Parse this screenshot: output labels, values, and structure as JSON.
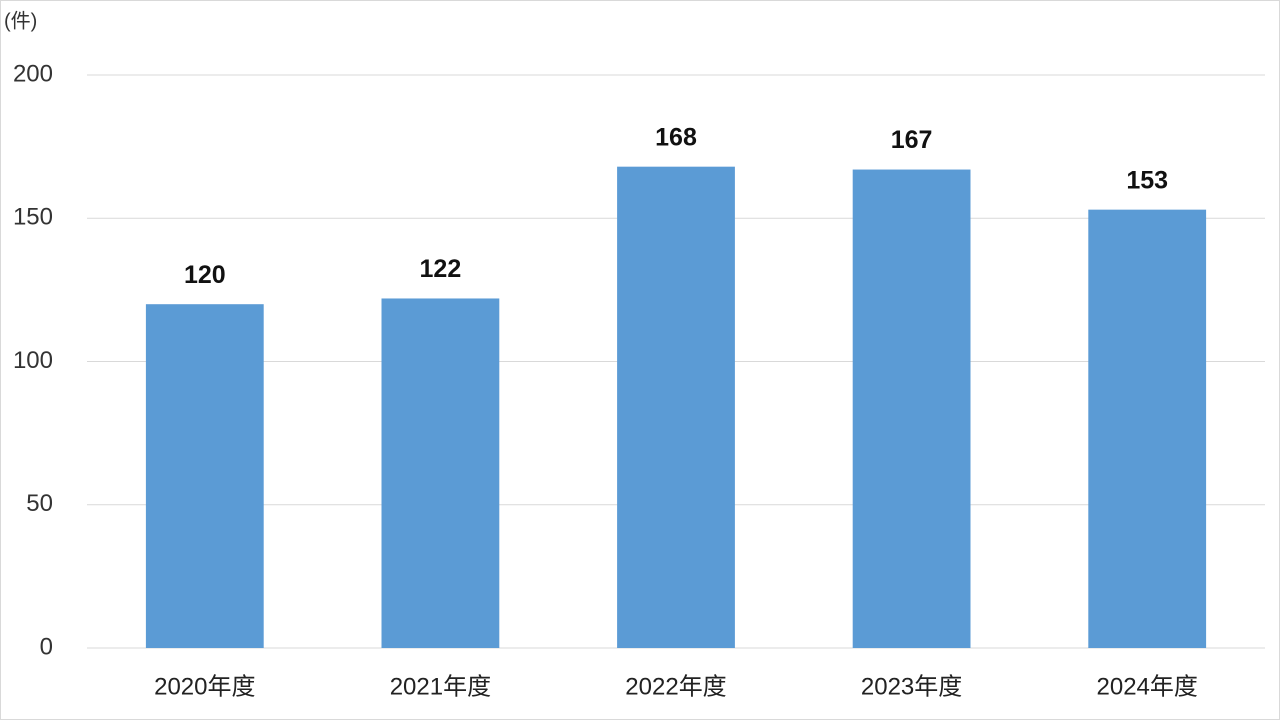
{
  "chart_data": {
    "type": "bar",
    "y_axis_label": "(件)",
    "categories": [
      "2020年度",
      "2021年度",
      "2022年度",
      "2023年度",
      "2024年度"
    ],
    "values": [
      120,
      122,
      168,
      167,
      153
    ],
    "color": "#5b9bd5",
    "ylim": [
      0,
      200
    ],
    "yticks": [
      0,
      50,
      100,
      150,
      200
    ],
    "grid": true
  }
}
